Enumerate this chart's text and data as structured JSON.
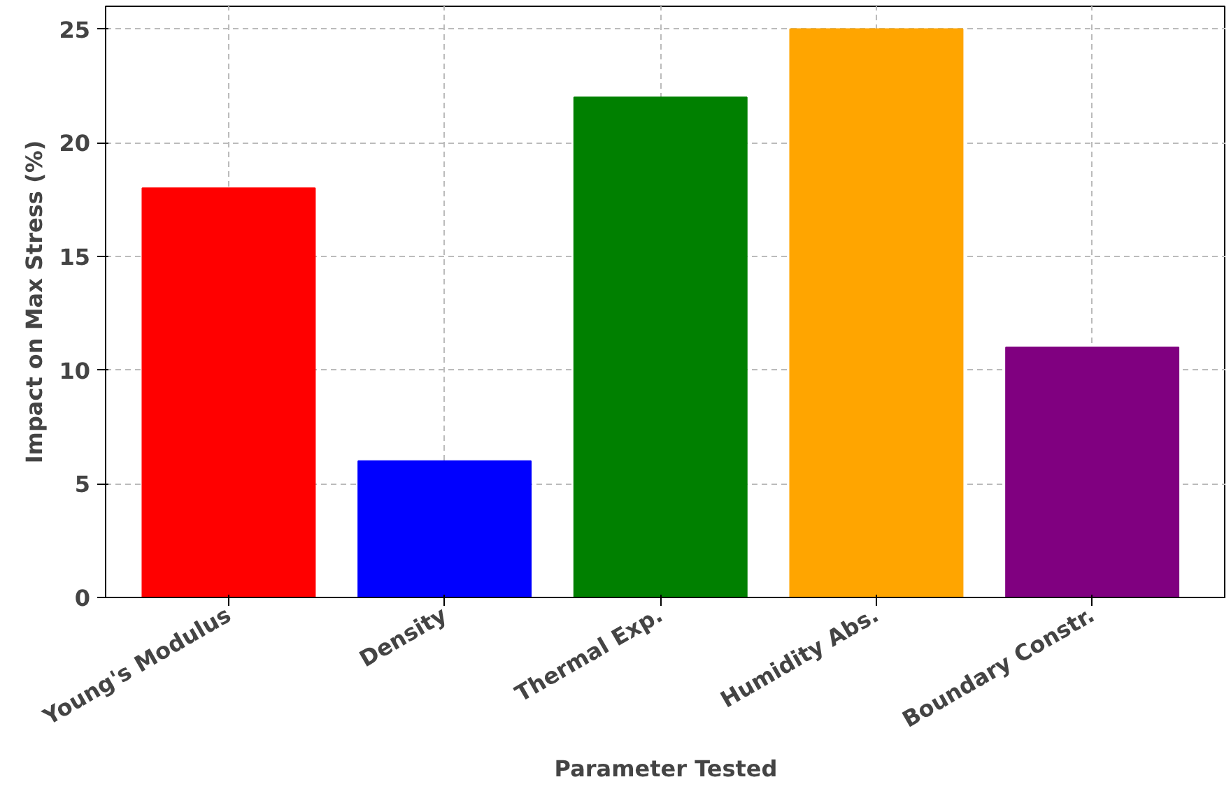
{
  "chart_data": {
    "type": "bar",
    "xlabel": "Parameter Tested",
    "ylabel": "Impact on Max Stress (%)",
    "categories": [
      "Young's Modulus",
      "Density",
      "Thermal Exp.",
      "Humidity Abs.",
      "Boundary Constr."
    ],
    "values": [
      18,
      6,
      22,
      25,
      11
    ],
    "colors": [
      "#ff0000",
      "#0000ff",
      "#008000",
      "#ffa500",
      "#800080"
    ],
    "ylim": [
      0,
      26
    ],
    "yticks": [
      0,
      5,
      10,
      15,
      20,
      25
    ],
    "grid": true
  }
}
